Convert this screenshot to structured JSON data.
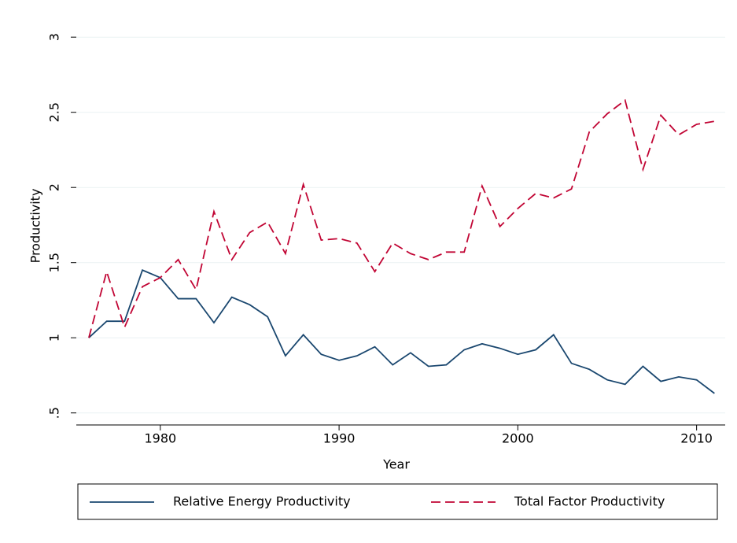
{
  "chart_data": {
    "type": "line",
    "x": [
      1976,
      1977,
      1978,
      1979,
      1980,
      1981,
      1982,
      1983,
      1984,
      1985,
      1986,
      1987,
      1988,
      1989,
      1990,
      1991,
      1992,
      1993,
      1994,
      1995,
      1996,
      1997,
      1998,
      1999,
      2000,
      2001,
      2002,
      2003,
      2004,
      2005,
      2006,
      2007,
      2008,
      2009,
      2010,
      2011
    ],
    "series": [
      {
        "name": "Relative Energy Productivity",
        "color": "#1a476f",
        "dash": "solid",
        "values": [
          1.0,
          1.11,
          1.11,
          1.45,
          1.4,
          1.26,
          1.26,
          1.1,
          1.27,
          1.22,
          1.14,
          0.88,
          1.02,
          0.89,
          0.85,
          0.88,
          0.94,
          0.82,
          0.9,
          0.81,
          0.82,
          0.92,
          0.96,
          0.93,
          0.89,
          0.92,
          1.02,
          0.83,
          0.79,
          0.72,
          0.69,
          0.81,
          0.71,
          0.74,
          0.72,
          0.63
        ]
      },
      {
        "name": "Total Factor Productivity",
        "color": "#c10534",
        "dash": "dashed",
        "values": [
          1.0,
          1.44,
          1.07,
          1.34,
          1.4,
          1.52,
          1.32,
          1.84,
          1.52,
          1.7,
          1.77,
          1.56,
          2.02,
          1.65,
          1.66,
          1.63,
          1.44,
          1.63,
          1.56,
          1.52,
          1.57,
          1.57,
          2.01,
          1.74,
          1.86,
          1.96,
          1.93,
          1.99,
          2.37,
          2.49,
          2.58,
          2.12,
          2.48,
          2.35,
          2.42,
          2.44
        ]
      }
    ],
    "xlabel": "Year",
    "ylabel": "Productivity",
    "xlim": [
      1975.3,
      2011.6
    ],
    "xticks": [
      1980,
      1990,
      2000,
      2010
    ],
    "ylim": [
      0.42,
      3.09
    ],
    "yticks": [
      {
        "value": 0.5,
        "label": ".5"
      },
      1,
      1.5,
      2,
      2.5,
      3
    ],
    "grid": true,
    "legend": "bottom"
  }
}
